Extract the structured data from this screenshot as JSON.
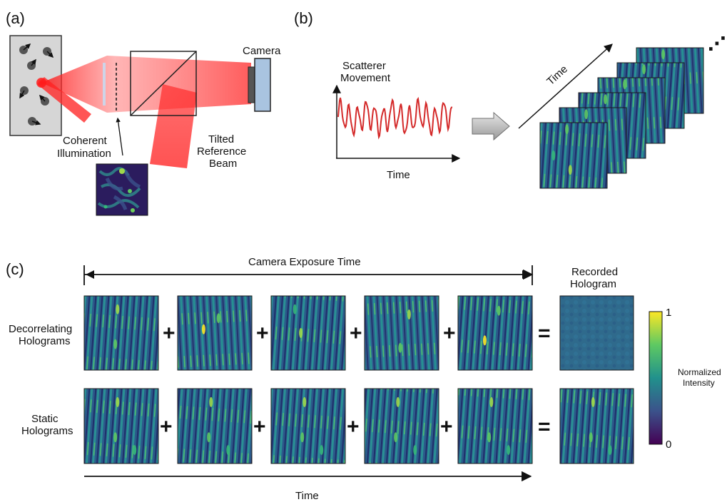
{
  "panels": {
    "a": {
      "label": "(a)",
      "camera_label": "Camera",
      "illumination_label": [
        "Coherent",
        "Illumination"
      ],
      "reference_label": [
        "Tilted",
        "Reference",
        "Beam"
      ]
    },
    "b": {
      "label": "(b)",
      "ylabel": [
        "Scatterer",
        "Movement"
      ],
      "xlabel": "Time",
      "stack_axis_label": "Time",
      "ellipsis": "⋰"
    },
    "c": {
      "label": "(c)",
      "exposure_label": "Camera Exposure Time",
      "recorded_label": [
        "Recorded",
        "Hologram"
      ],
      "row1_label": [
        "Decorrelating",
        "Holograms"
      ],
      "row2_label": [
        "Static",
        "Holograms"
      ],
      "plus": "+",
      "equals": "=",
      "time_label": "Time",
      "colorbar": {
        "title": [
          "Normalized",
          "Intensity"
        ],
        "max_label": "1",
        "min_label": "0",
        "colors": [
          "#440154",
          "#3b528b",
          "#21918c",
          "#5ec962",
          "#fde725"
        ]
      }
    }
  },
  "colors": {
    "laser": "#e8141b",
    "camera_body": "#a9c4e0",
    "hologram_bg": "#2e5e8b",
    "signal_line": "#d42a2a"
  }
}
